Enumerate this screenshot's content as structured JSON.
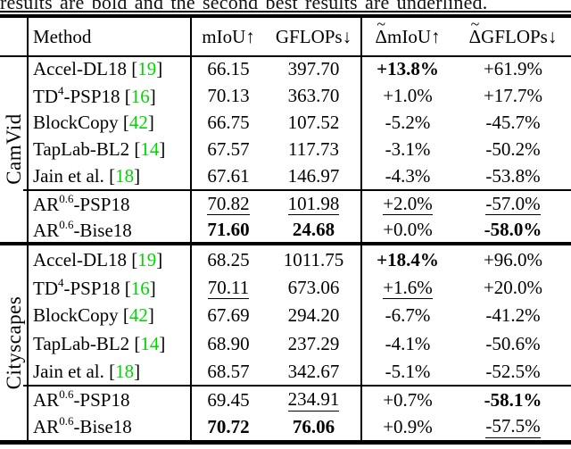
{
  "caption": {
    "text": "results are bold and the second best results are underlined."
  },
  "colors": {
    "citation_green": "#00d600",
    "text": "#000000",
    "rule": "#000000"
  },
  "symbols": {
    "tilde": "~",
    "delta": "Δ",
    "arrow_up": "↑",
    "arrow_down": "↓",
    "bracket_open": "[",
    "bracket_close": "]"
  },
  "header": {
    "group": "",
    "method": "Method",
    "miou": "mIoU↑",
    "gflops": "GFLOPs↓",
    "delta_miou_suffix": "mIoU↑",
    "delta_gflops_suffix": "GFLOPs↓"
  },
  "table": {
    "sections": [
      {
        "group": "CamVid",
        "rows": [
          {
            "method": {
              "pre": "Accel-DL18",
              "sup": "",
              "post": "",
              "cite": "19"
            },
            "cells": [
              {
                "t": "66.15"
              },
              {
                "t": "397.70"
              },
              {
                "t": "+13.8%",
                "b": 1
              },
              {
                "t": "+61.9%"
              }
            ]
          },
          {
            "method": {
              "pre": "TD",
              "sup": "4",
              "post": "-PSP18",
              "cite": "16"
            },
            "cells": [
              {
                "t": "70.13"
              },
              {
                "t": "363.70"
              },
              {
                "t": "+1.0%"
              },
              {
                "t": "+17.7%"
              }
            ]
          },
          {
            "method": {
              "pre": "BlockCopy",
              "sup": "",
              "post": "",
              "cite": "42"
            },
            "cells": [
              {
                "t": "66.75"
              },
              {
                "t": "107.52"
              },
              {
                "t": "-5.2%"
              },
              {
                "t": "-45.7%"
              }
            ]
          },
          {
            "method": {
              "pre": "TapLab-BL2",
              "sup": "",
              "post": "",
              "cite": "14"
            },
            "cells": [
              {
                "t": "67.57"
              },
              {
                "t": "117.73"
              },
              {
                "t": "-3.1%"
              },
              {
                "t": "-50.2%"
              }
            ]
          },
          {
            "method": {
              "pre": "Jain et al.",
              "sup": "",
              "post": "",
              "cite": "18"
            },
            "cells": [
              {
                "t": "67.61"
              },
              {
                "t": "146.97"
              },
              {
                "t": "-4.3%"
              },
              {
                "t": "-53.8%"
              }
            ]
          }
        ],
        "ours": [
          {
            "method": {
              "pre": "AR",
              "sup": "0.6",
              "post": "-PSP18",
              "cite": ""
            },
            "cells": [
              {
                "t": "70.82",
                "u": 1
              },
              {
                "t": "101.98",
                "u": 1
              },
              {
                "t": "+2.0%",
                "u": 1
              },
              {
                "t": "-57.0%",
                "u": 1
              }
            ]
          },
          {
            "method": {
              "pre": "AR",
              "sup": "0.6",
              "post": "-Bise18",
              "cite": ""
            },
            "cells": [
              {
                "t": "71.60",
                "b": 1
              },
              {
                "t": "24.68",
                "b": 1
              },
              {
                "t": "+0.0%"
              },
              {
                "t": "-58.0%",
                "b": 1
              }
            ]
          }
        ]
      },
      {
        "group": "Cityscapes",
        "rows": [
          {
            "method": {
              "pre": "Accel-DL18",
              "sup": "",
              "post": "",
              "cite": "19"
            },
            "cells": [
              {
                "t": "68.25"
              },
              {
                "t": "1011.75"
              },
              {
                "t": "+18.4%",
                "b": 1
              },
              {
                "t": "+96.0%"
              }
            ]
          },
          {
            "method": {
              "pre": "TD",
              "sup": "4",
              "post": "-PSP18",
              "cite": "16"
            },
            "cells": [
              {
                "t": "70.11",
                "u": 1
              },
              {
                "t": "673.06"
              },
              {
                "t": "+1.6%",
                "u": 1
              },
              {
                "t": "+20.0%"
              }
            ]
          },
          {
            "method": {
              "pre": "BlockCopy",
              "sup": "",
              "post": "",
              "cite": "42"
            },
            "cells": [
              {
                "t": "67.69"
              },
              {
                "t": "294.20"
              },
              {
                "t": "-6.7%"
              },
              {
                "t": "-41.2%"
              }
            ]
          },
          {
            "method": {
              "pre": "TapLab-BL2",
              "sup": "",
              "post": "",
              "cite": "14"
            },
            "cells": [
              {
                "t": "68.90"
              },
              {
                "t": "237.29"
              },
              {
                "t": "-4.1%"
              },
              {
                "t": "-50.6%"
              }
            ]
          },
          {
            "method": {
              "pre": "Jain et al.",
              "sup": "",
              "post": "",
              "cite": "18"
            },
            "cells": [
              {
                "t": "68.57"
              },
              {
                "t": "342.67"
              },
              {
                "t": "-5.1%"
              },
              {
                "t": "-52.5%"
              }
            ]
          }
        ],
        "ours": [
          {
            "method": {
              "pre": "AR",
              "sup": "0.6",
              "post": "-PSP18",
              "cite": ""
            },
            "cells": [
              {
                "t": "69.45"
              },
              {
                "t": "234.91",
                "u": 1
              },
              {
                "t": "+0.7%"
              },
              {
                "t": "-58.1%",
                "b": 1
              }
            ]
          },
          {
            "method": {
              "pre": "AR",
              "sup": "0.6",
              "post": "-Bise18",
              "cite": ""
            },
            "cells": [
              {
                "t": "70.72",
                "b": 1
              },
              {
                "t": "76.06",
                "b": 1
              },
              {
                "t": "+0.9%"
              },
              {
                "t": "-57.5%",
                "u": 1
              }
            ]
          }
        ]
      }
    ]
  }
}
